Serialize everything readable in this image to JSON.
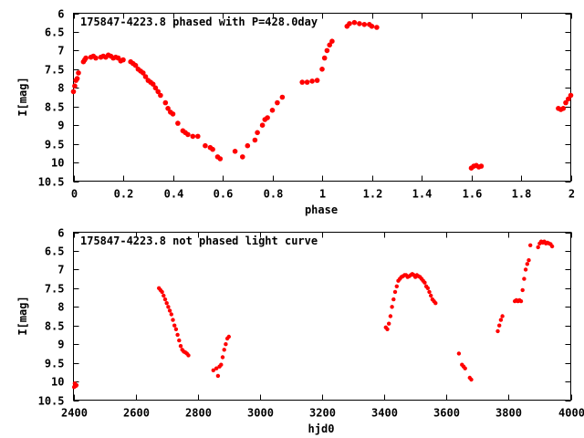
{
  "chart_data": [
    {
      "type": "scatter",
      "title": "175847-4223.8 phased with P=428.0day",
      "xlabel": "phase",
      "ylabel": "I[mag]",
      "xlim": [
        0,
        2
      ],
      "ylim": [
        10.5,
        6
      ],
      "y_inverted": true,
      "xticks": [
        0,
        0.2,
        0.4,
        0.6,
        0.8,
        1,
        1.2,
        1.4,
        1.6,
        1.8,
        2
      ],
      "xtick_labels": [
        "0",
        "0.2",
        "0.4",
        "0.6",
        "0.8",
        "1",
        "1.2",
        "1.4",
        "1.6",
        "1.8",
        "2"
      ],
      "yticks": [
        6,
        6.5,
        7,
        7.5,
        8,
        8.5,
        9,
        9.5,
        10,
        10.5
      ],
      "ytick_labels": [
        "6",
        "6.5",
        "7",
        "7.5",
        "8",
        "8.5",
        "9",
        "9.5",
        "10",
        "10.5"
      ],
      "marker_color": "#ff0000",
      "grid": false,
      "series": [
        {
          "x": [
            0.0,
            0.005,
            0.01,
            0.015,
            0.02,
            0.04,
            0.045,
            0.05,
            0.07,
            0.08,
            0.09,
            0.11,
            0.12,
            0.13,
            0.14,
            0.15,
            0.16,
            0.17,
            0.18,
            0.19,
            0.2,
            0.23,
            0.24,
            0.25,
            0.26,
            0.27,
            0.28,
            0.29,
            0.3,
            0.31,
            0.32,
            0.33,
            0.34,
            0.35,
            0.37,
            0.38,
            0.39,
            0.4,
            0.42,
            0.44,
            0.45,
            0.46,
            0.48,
            0.5,
            0.53,
            0.55,
            0.56,
            0.58,
            0.59,
            0.65,
            0.68,
            0.7,
            0.73,
            0.74,
            0.76,
            0.77,
            0.78,
            0.8,
            0.82,
            0.84,
            0.92,
            0.94,
            0.96,
            0.98,
            1.0,
            1.01,
            1.02,
            1.03,
            1.04,
            1.1,
            1.11,
            1.13,
            1.15,
            1.17,
            1.19,
            1.2,
            1.22,
            1.6,
            1.61,
            1.62,
            1.63,
            1.64,
            1.95,
            1.96,
            1.97,
            1.98,
            1.99,
            2.0
          ],
          "y": [
            8.1,
            7.95,
            7.8,
            7.75,
            7.6,
            7.3,
            7.25,
            7.2,
            7.18,
            7.15,
            7.2,
            7.18,
            7.15,
            7.18,
            7.12,
            7.15,
            7.2,
            7.18,
            7.2,
            7.28,
            7.25,
            7.3,
            7.35,
            7.4,
            7.5,
            7.55,
            7.6,
            7.7,
            7.8,
            7.85,
            7.9,
            8.0,
            8.1,
            8.2,
            8.4,
            8.55,
            8.65,
            8.7,
            8.95,
            9.15,
            9.2,
            9.25,
            9.3,
            9.3,
            9.55,
            9.6,
            9.65,
            9.85,
            9.9,
            9.7,
            9.85,
            9.55,
            9.4,
            9.2,
            9.0,
            8.85,
            8.8,
            8.6,
            8.4,
            8.25,
            7.85,
            7.85,
            7.82,
            7.8,
            7.5,
            7.2,
            7.0,
            6.85,
            6.75,
            6.35,
            6.28,
            6.25,
            6.28,
            6.3,
            6.3,
            6.35,
            6.38,
            10.15,
            10.1,
            10.08,
            10.12,
            10.1,
            8.55,
            8.58,
            8.55,
            8.4,
            8.3,
            8.2
          ]
        }
      ]
    },
    {
      "type": "scatter",
      "title": "175847-4223.8 not phased light curve",
      "xlabel": "hjd0",
      "ylabel": "I[mag]",
      "xlim": [
        2400,
        4000
      ],
      "ylim": [
        10.5,
        6
      ],
      "y_inverted": true,
      "xticks": [
        2400,
        2600,
        2800,
        3000,
        3200,
        3400,
        3600,
        3800,
        4000
      ],
      "xtick_labels": [
        "2400",
        "2600",
        "2800",
        "3000",
        "3200",
        "3400",
        "3600",
        "3800",
        "4000"
      ],
      "yticks": [
        6,
        6.5,
        7,
        7.5,
        8,
        8.5,
        9,
        9.5,
        10,
        10.5
      ],
      "ytick_labels": [
        "6",
        "6.5",
        "7",
        "7.5",
        "8",
        "8.5",
        "9",
        "9.5",
        "10",
        "10.5"
      ],
      "marker_color": "#ff0000",
      "grid": false,
      "series": [
        {
          "x": [
            2402,
            2404,
            2406,
            2408,
            2410,
            2675,
            2680,
            2685,
            2690,
            2695,
            2700,
            2705,
            2710,
            2715,
            2720,
            2725,
            2730,
            2735,
            2740,
            2745,
            2750,
            2755,
            2760,
            2765,
            2770,
            2850,
            2860,
            2865,
            2870,
            2875,
            2880,
            2885,
            2890,
            2895,
            2900,
            3405,
            3410,
            3415,
            3420,
            3425,
            3430,
            3435,
            3440,
            3445,
            3450,
            3455,
            3460,
            3465,
            3470,
            3475,
            3480,
            3485,
            3490,
            3495,
            3500,
            3505,
            3510,
            3515,
            3520,
            3525,
            3530,
            3535,
            3540,
            3545,
            3550,
            3555,
            3560,
            3565,
            3640,
            3650,
            3655,
            3660,
            3675,
            3680,
            3765,
            3770,
            3775,
            3780,
            3820,
            3825,
            3830,
            3835,
            3840,
            3845,
            3850,
            3855,
            3860,
            3865,
            3870,
            3895,
            3900,
            3905,
            3910,
            3915,
            3920,
            3925,
            3930,
            3935,
            3940
          ],
          "y": [
            10.15,
            10.05,
            10.1,
            10.12,
            10.1,
            7.5,
            7.55,
            7.6,
            7.7,
            7.8,
            7.9,
            8.0,
            8.1,
            8.2,
            8.35,
            8.5,
            8.6,
            8.75,
            8.9,
            9.05,
            9.15,
            9.2,
            9.22,
            9.25,
            9.3,
            9.7,
            9.65,
            9.85,
            9.6,
            9.55,
            9.35,
            9.15,
            9.0,
            8.85,
            8.8,
            8.55,
            8.6,
            8.45,
            8.25,
            8.0,
            7.8,
            7.6,
            7.45,
            7.3,
            7.25,
            7.2,
            7.18,
            7.15,
            7.15,
            7.2,
            7.18,
            7.15,
            7.12,
            7.15,
            7.2,
            7.15,
            7.18,
            7.2,
            7.25,
            7.3,
            7.35,
            7.45,
            7.5,
            7.6,
            7.7,
            7.8,
            7.85,
            7.9,
            9.25,
            9.55,
            9.6,
            9.65,
            9.9,
            9.95,
            8.65,
            8.5,
            8.35,
            8.25,
            7.85,
            7.82,
            7.85,
            7.82,
            7.85,
            7.55,
            7.25,
            7.0,
            6.85,
            6.75,
            6.35,
            6.4,
            6.3,
            6.25,
            6.28,
            6.25,
            6.3,
            6.28,
            6.3,
            6.32,
            6.38
          ]
        }
      ]
    }
  ]
}
